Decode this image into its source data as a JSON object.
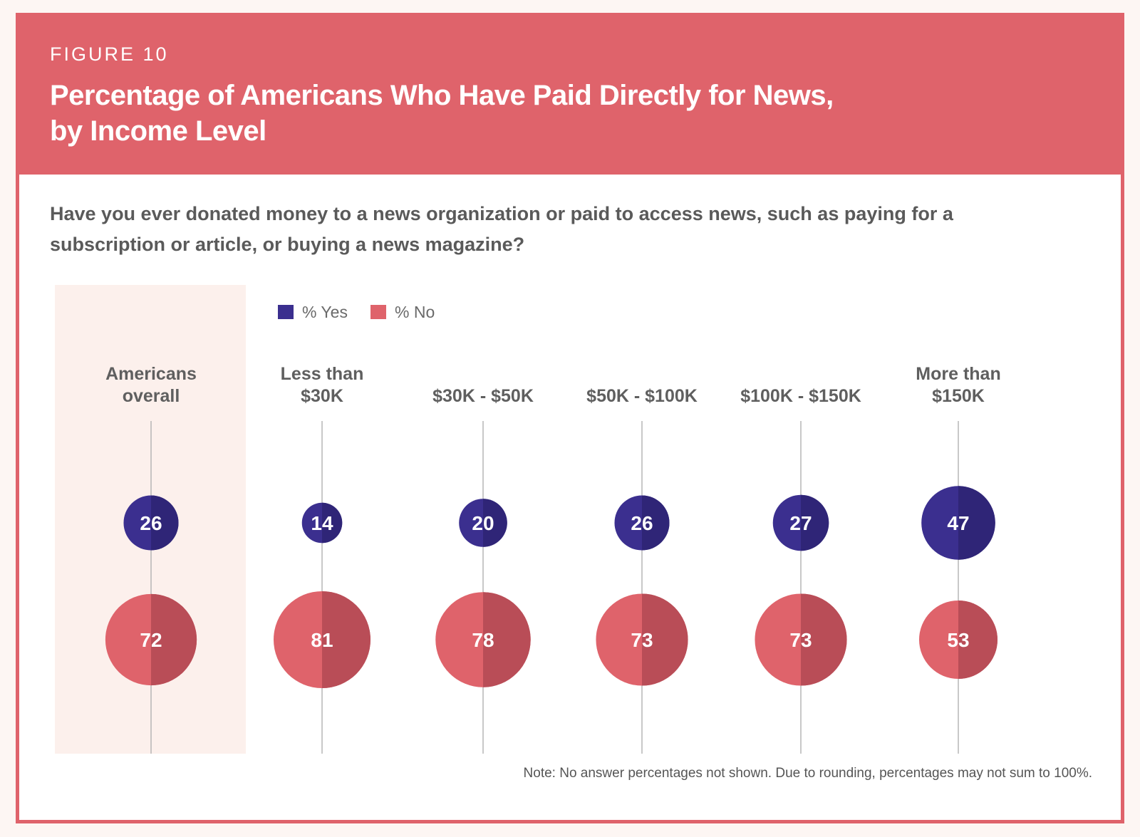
{
  "figure_label": "FIGURE 10",
  "figure_title_line1": "Percentage of Americans Who Have Paid Directly for News,",
  "figure_title_line2": "by Income Level",
  "question_line1": "Have you ever donated money to a news organization or paid to access news, such as paying for a",
  "question_line2": "subscription or article, or buying a news magazine?",
  "note": "Note: No answer percentages not shown. Due to rounding, percentages may not sum to 100%.",
  "colors": {
    "header": "#df636b",
    "yes": "#3b2f8f",
    "yes_dark": "#2f2577",
    "no": "#df636b",
    "no_dark": "#b94d57",
    "highlight_bg": "#fcf0ec"
  },
  "chart_data": {
    "type": "bubble",
    "categories": [
      "Americans\noverall",
      "Less than\n$30K",
      "$30K - $50K",
      "$50K - $100K",
      "$100K - $150K",
      "More than\n$150K"
    ],
    "legend": [
      {
        "name": "% Yes",
        "color": "#3b2f8f"
      },
      {
        "name": "% No",
        "color": "#df636b"
      }
    ],
    "series": [
      {
        "name": "% Yes",
        "values": [
          26,
          14,
          20,
          26,
          27,
          47
        ]
      },
      {
        "name": "% No",
        "values": [
          72,
          81,
          78,
          73,
          73,
          53
        ]
      }
    ],
    "highlighted_category": "Americans\noverall"
  }
}
